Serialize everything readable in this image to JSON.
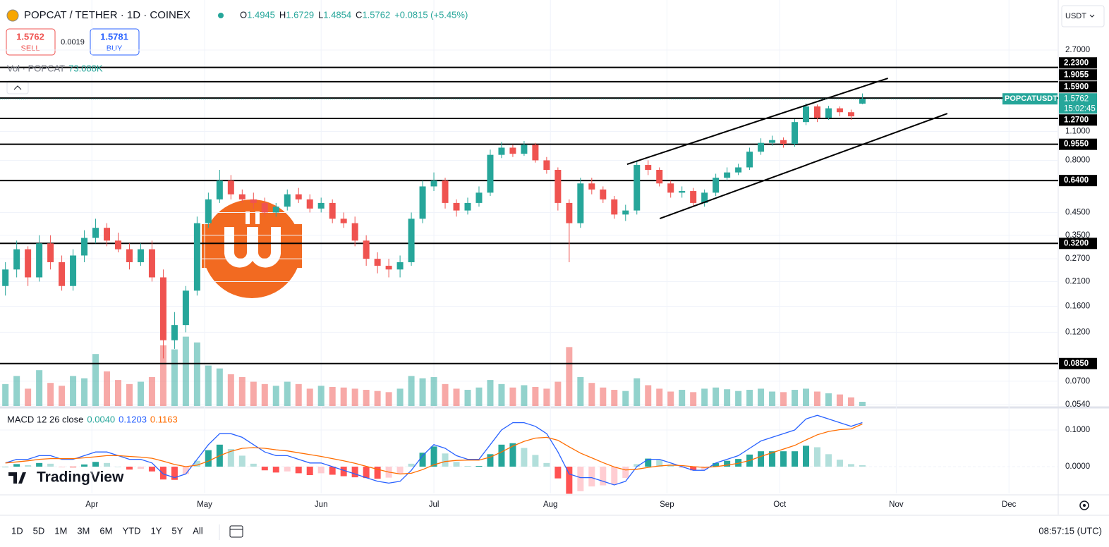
{
  "header": {
    "title": "POPCAT / TETHER · 1D · COINEX",
    "ohlc_keys": [
      "O",
      "H",
      "L",
      "C"
    ],
    "change": "+0.0815 (+5.45%)",
    "sell": "SELL",
    "buy": "BUY",
    "sell_price": "1.5762",
    "buy_price": "1.5781",
    "spread": "0.0019",
    "currency": "USDT",
    "vol_label": "Vol · POPCAT",
    "vol_last": "73.088K",
    "symbol_tag": "POPCATUSDT",
    "countdown": "15:02:45",
    "logo": "TradingView"
  },
  "toolbar": {
    "ranges": [
      "1D",
      "5D",
      "1M",
      "3M",
      "6M",
      "YTD",
      "1Y",
      "5Y",
      "All"
    ],
    "clock": "08:57:15 (UTC)"
  },
  "chart_data": {
    "type": "candlestick",
    "log_scale": true,
    "up_color": "#26a69a",
    "down_color": "#ef5350",
    "xlim": [
      -23.5,
      257.1
    ],
    "xticks": [
      {
        "value": 0,
        "label": "Apr"
      },
      {
        "value": 30,
        "label": "May"
      },
      {
        "value": 61,
        "label": "Jun"
      },
      {
        "value": 91,
        "label": "Jul"
      },
      {
        "value": 122,
        "label": "Aug"
      },
      {
        "value": 153,
        "label": "Sep"
      },
      {
        "value": 183,
        "label": "Oct"
      },
      {
        "value": 214,
        "label": "Nov"
      },
      {
        "value": 244,
        "label": "Dec"
      }
    ],
    "ylim": [
      0.0524,
      4.69
    ],
    "yticks": [
      {
        "value": 2.7,
        "label": "2.7000"
      },
      {
        "value": 1.1,
        "label": "1.1000"
      },
      {
        "value": 0.8,
        "label": "0.8000"
      },
      {
        "value": 0.45,
        "label": "0.4500"
      },
      {
        "value": 0.35,
        "label": "0.3500"
      },
      {
        "value": 0.27,
        "label": "0.2700"
      },
      {
        "value": 0.21,
        "label": "0.2100"
      },
      {
        "value": 0.16,
        "label": "0.1600"
      },
      {
        "value": 0.12,
        "label": "0.1200"
      },
      {
        "value": 0.07,
        "label": "0.0700"
      },
      {
        "value": 0.054,
        "label": "0.0540"
      }
    ],
    "levels": [
      {
        "value": 2.23,
        "label": "2.2300"
      },
      {
        "value": 1.9055,
        "label": "1.9055"
      },
      {
        "value": 1.59,
        "label": "1.5900"
      },
      {
        "value": 1.27,
        "label": "1.2700"
      },
      {
        "value": 0.955,
        "label": "0.9550"
      },
      {
        "value": 0.64,
        "label": "0.6400"
      },
      {
        "value": 0.32,
        "label": "0.3200"
      },
      {
        "value": 0.085,
        "label": "0.0850"
      }
    ],
    "trendlines": [
      {
        "x": [
          142.4,
          211.8
        ],
        "y": [
          0.766,
          1.978
        ]
      },
      {
        "x": [
          151.1,
          227.6
        ],
        "y": [
          0.421,
          1.34
        ]
      }
    ],
    "x": [
      -23,
      -20,
      -17,
      -14,
      -11,
      -8,
      -5,
      -2,
      1,
      4,
      7,
      10,
      13,
      16,
      19,
      22,
      25,
      28,
      31,
      34,
      37,
      40,
      43,
      46,
      49,
      52,
      55,
      58,
      61,
      64,
      67,
      70,
      73,
      76,
      79,
      82,
      85,
      88,
      91,
      94,
      97,
      100,
      103,
      106,
      109,
      112,
      115,
      118,
      121,
      124,
      127,
      130,
      133,
      136,
      139,
      142,
      145,
      148,
      151,
      154,
      157,
      160,
      163,
      166,
      169,
      172,
      175,
      178,
      181,
      184,
      187,
      190,
      193,
      196,
      199,
      202,
      205
    ],
    "candles": {
      "open": [
        0.2,
        0.24,
        0.3,
        0.22,
        0.32,
        0.26,
        0.2,
        0.28,
        0.34,
        0.38,
        0.33,
        0.3,
        0.26,
        0.3,
        0.22,
        0.11,
        0.13,
        0.19,
        0.4,
        0.52,
        0.64,
        0.55,
        0.52,
        0.5,
        0.45,
        0.48,
        0.55,
        0.52,
        0.47,
        0.5,
        0.42,
        0.4,
        0.33,
        0.27,
        0.25,
        0.24,
        0.26,
        0.42,
        0.6,
        0.64,
        0.5,
        0.46,
        0.5,
        0.56,
        0.85,
        0.92,
        0.86,
        0.95,
        0.8,
        0.72,
        0.5,
        0.4,
        0.62,
        0.58,
        0.52,
        0.44,
        0.46,
        0.76,
        0.72,
        0.62,
        0.56,
        0.57,
        0.5,
        0.56,
        0.66,
        0.7,
        0.74,
        0.88,
        0.97,
        1.0,
        0.96,
        1.22,
        1.45,
        1.28,
        1.42,
        1.36,
        1.4945
      ],
      "high": [
        0.26,
        0.33,
        0.31,
        0.35,
        0.35,
        0.28,
        0.3,
        0.37,
        0.42,
        0.4,
        0.36,
        0.32,
        0.32,
        0.33,
        0.24,
        0.15,
        0.2,
        0.43,
        0.56,
        0.72,
        0.68,
        0.58,
        0.56,
        0.53,
        0.5,
        0.58,
        0.59,
        0.55,
        0.53,
        0.52,
        0.45,
        0.43,
        0.35,
        0.29,
        0.27,
        0.28,
        0.45,
        0.64,
        0.7,
        0.66,
        0.52,
        0.53,
        0.6,
        0.9,
        0.98,
        0.95,
        0.99,
        0.97,
        0.83,
        0.74,
        0.52,
        0.66,
        0.66,
        0.6,
        0.54,
        0.49,
        0.8,
        0.8,
        0.74,
        0.64,
        0.6,
        0.59,
        0.58,
        0.69,
        0.74,
        0.77,
        0.92,
        1.02,
        1.05,
        1.03,
        1.26,
        1.5,
        1.48,
        1.46,
        1.45,
        1.4,
        1.6729
      ],
      "low": [
        0.18,
        0.22,
        0.2,
        0.21,
        0.24,
        0.19,
        0.19,
        0.26,
        0.32,
        0.31,
        0.29,
        0.24,
        0.25,
        0.21,
        0.09,
        0.1,
        0.12,
        0.18,
        0.38,
        0.5,
        0.52,
        0.5,
        0.47,
        0.43,
        0.43,
        0.46,
        0.5,
        0.45,
        0.45,
        0.4,
        0.38,
        0.31,
        0.25,
        0.23,
        0.22,
        0.22,
        0.25,
        0.4,
        0.57,
        0.47,
        0.43,
        0.44,
        0.48,
        0.54,
        0.82,
        0.83,
        0.84,
        0.78,
        0.69,
        0.46,
        0.26,
        0.38,
        0.55,
        0.5,
        0.42,
        0.41,
        0.44,
        0.68,
        0.6,
        0.53,
        0.53,
        0.48,
        0.48,
        0.54,
        0.64,
        0.68,
        0.72,
        0.85,
        0.94,
        0.92,
        0.93,
        1.18,
        1.22,
        1.25,
        1.3,
        1.25,
        1.4854
      ],
      "close": [
        0.24,
        0.3,
        0.22,
        0.32,
        0.26,
        0.2,
        0.28,
        0.34,
        0.38,
        0.33,
        0.3,
        0.26,
        0.3,
        0.22,
        0.11,
        0.13,
        0.19,
        0.4,
        0.52,
        0.64,
        0.55,
        0.52,
        0.5,
        0.45,
        0.48,
        0.55,
        0.52,
        0.47,
        0.5,
        0.42,
        0.4,
        0.33,
        0.27,
        0.25,
        0.24,
        0.26,
        0.42,
        0.6,
        0.64,
        0.5,
        0.46,
        0.5,
        0.56,
        0.85,
        0.92,
        0.86,
        0.95,
        0.8,
        0.72,
        0.5,
        0.4,
        0.62,
        0.58,
        0.52,
        0.44,
        0.46,
        0.76,
        0.72,
        0.62,
        0.56,
        0.57,
        0.5,
        0.56,
        0.66,
        0.7,
        0.74,
        0.88,
        0.97,
        1.0,
        0.96,
        1.22,
        1.45,
        1.28,
        1.42,
        1.36,
        1.3,
        1.5762
      ]
    },
    "volume": {
      "ylim": [
        0,
        5000
      ],
      "values": [
        380,
        520,
        300,
        620,
        400,
        350,
        520,
        480,
        900,
        600,
        450,
        380,
        420,
        500,
        1050,
        980,
        1200,
        1100,
        700,
        650,
        550,
        500,
        420,
        380,
        350,
        420,
        380,
        300,
        350,
        330,
        320,
        300,
        280,
        260,
        240,
        300,
        520,
        480,
        500,
        380,
        300,
        280,
        320,
        450,
        380,
        320,
        360,
        330,
        300,
        420,
        1020,
        500,
        400,
        320,
        280,
        260,
        480,
        360,
        300,
        250,
        280,
        240,
        300,
        320,
        290,
        260,
        280,
        300,
        250,
        240,
        280,
        300,
        250,
        220,
        200,
        150,
        73.088
      ]
    },
    "macd": {
      "label": "MACD 12 26 close",
      "ylim": [
        -0.073,
        0.1577
      ],
      "yticks": [
        {
          "value": 0.1,
          "label": "0.1000"
        },
        {
          "value": 0,
          "label": "0.0000"
        }
      ],
      "hist_color": "#26a69a",
      "macd_color": "#2962ff",
      "signal_color": "#ff6d00",
      "hist_last_label": "0.0040",
      "hist": [
        0.0,
        0.007,
        0.004,
        0.01,
        0.008,
        -0.002,
        -0.002,
        0.006,
        0.013,
        0.01,
        0.0,
        -0.008,
        -0.006,
        -0.013,
        -0.035,
        -0.036,
        -0.02,
        0.016,
        0.045,
        0.06,
        0.048,
        0.03,
        0.008,
        -0.01,
        -0.016,
        -0.013,
        -0.018,
        -0.023,
        -0.018,
        -0.022,
        -0.026,
        -0.029,
        -0.031,
        -0.033,
        -0.03,
        -0.02,
        0.008,
        0.038,
        0.055,
        0.036,
        0.013,
        0.002,
        0.002,
        0.034,
        0.06,
        0.064,
        0.051,
        0.032,
        0.01,
        -0.032,
        -0.074,
        -0.067,
        -0.054,
        -0.051,
        -0.049,
        -0.031,
        0.007,
        0.022,
        0.018,
        0.006,
        -0.003,
        -0.01,
        -0.008,
        0.01,
        0.016,
        0.021,
        0.033,
        0.042,
        0.042,
        0.042,
        0.042,
        0.057,
        0.053,
        0.034,
        0.019,
        0.007,
        0.004
      ],
      "macd": [
        0.01,
        0.02,
        0.02,
        0.03,
        0.03,
        0.02,
        0.02,
        0.03,
        0.04,
        0.04,
        0.03,
        0.02,
        0.02,
        0.01,
        -0.02,
        -0.03,
        -0.02,
        0.02,
        0.06,
        0.09,
        0.09,
        0.08,
        0.06,
        0.04,
        0.03,
        0.03,
        0.02,
        0.01,
        0.01,
        0.0,
        -0.01,
        -0.02,
        -0.03,
        -0.04,
        -0.045,
        -0.04,
        -0.01,
        0.03,
        0.06,
        0.05,
        0.03,
        0.02,
        0.02,
        0.06,
        0.1,
        0.12,
        0.12,
        0.11,
        0.09,
        0.04,
        -0.02,
        -0.03,
        -0.03,
        -0.04,
        -0.05,
        -0.04,
        0.0,
        0.02,
        0.02,
        0.01,
        0.0,
        -0.01,
        -0.01,
        0.01,
        0.02,
        0.03,
        0.05,
        0.07,
        0.08,
        0.09,
        0.1,
        0.13,
        0.14,
        0.13,
        0.12,
        0.11,
        0.1203
      ],
      "signal": [
        0.01,
        0.013,
        0.016,
        0.02,
        0.022,
        0.022,
        0.022,
        0.024,
        0.027,
        0.03,
        0.03,
        0.028,
        0.026,
        0.023,
        0.015,
        0.006,
        0.0,
        0.004,
        0.015,
        0.03,
        0.042,
        0.05,
        0.052,
        0.05,
        0.046,
        0.043,
        0.038,
        0.033,
        0.028,
        0.022,
        0.016,
        0.009,
        0.001,
        -0.007,
        -0.015,
        -0.02,
        -0.018,
        -0.008,
        0.005,
        0.014,
        0.017,
        0.018,
        0.018,
        0.026,
        0.04,
        0.056,
        0.069,
        0.078,
        0.08,
        0.072,
        0.054,
        0.037,
        0.024,
        0.011,
        -0.001,
        -0.009,
        -0.007,
        -0.002,
        0.002,
        0.004,
        0.003,
        0.0,
        -0.002,
        0.0,
        0.004,
        0.009,
        0.017,
        0.028,
        0.038,
        0.048,
        0.058,
        0.073,
        0.087,
        0.096,
        0.101,
        0.103,
        0.1163
      ]
    }
  }
}
